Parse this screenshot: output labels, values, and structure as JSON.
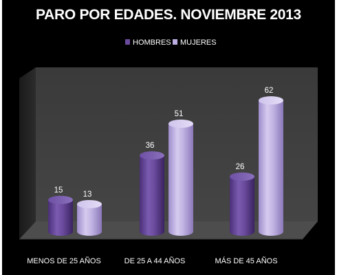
{
  "chart_data": {
    "type": "bar",
    "title": "PARO POR EDADES. NOVIEMBRE 2013",
    "categories": [
      "MENOS DE 25 AÑOS",
      "DE 25 A 44 AÑOS",
      "MÁS DE 45 AÑOS"
    ],
    "series": [
      {
        "name": "HOMBRES",
        "values": [
          15,
          36,
          26
        ],
        "color": "#6a4a9c"
      },
      {
        "name": "MUJERES",
        "values": [
          13,
          51,
          62
        ],
        "color": "#bcaee0"
      }
    ],
    "ylim": [
      0,
      70
    ],
    "grid": false,
    "legend_position": "top-center",
    "data_labels": true,
    "style": "3d-cylinder",
    "background": "#000000",
    "wall_color": "#3d3d3d",
    "floor_color": "#4a4a4a"
  }
}
